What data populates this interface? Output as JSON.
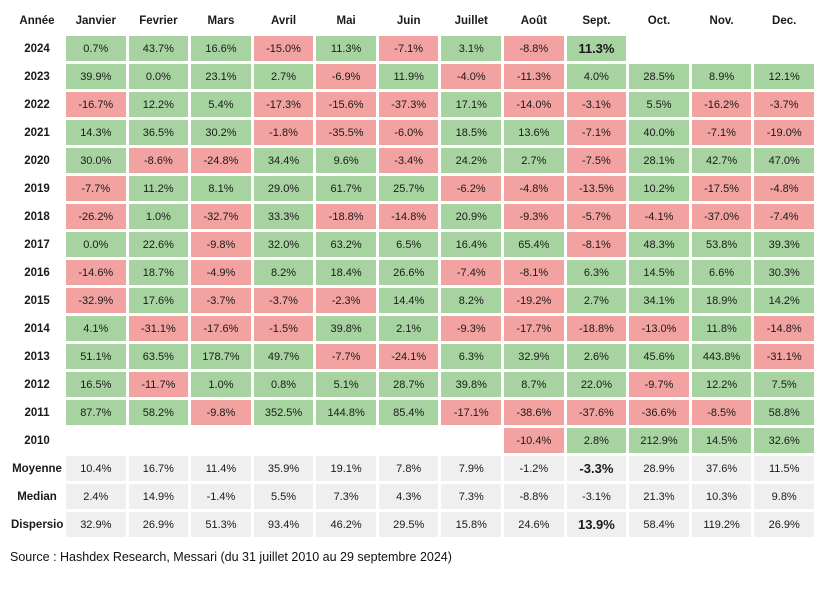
{
  "chart_data": {
    "type": "table",
    "columns": [
      "Année",
      "Janvier",
      "Fevrier",
      "Mars",
      "Avril",
      "Mai",
      "Juin",
      "Juillet",
      "Août",
      "Sept.",
      "Oct.",
      "Nov.",
      "Dec."
    ],
    "rows": [
      {
        "label": "2024",
        "kind": "year",
        "values": [
          "0.7%",
          "43.7%",
          "16.6%",
          "-15.0%",
          "11.3%",
          "-7.1%",
          "3.1%",
          "-8.8%",
          "11.3%",
          "",
          "",
          ""
        ]
      },
      {
        "label": "2023",
        "kind": "year",
        "values": [
          "39.9%",
          "0.0%",
          "23.1%",
          "2.7%",
          "-6.9%",
          "11.9%",
          "-4.0%",
          "-11.3%",
          "4.0%",
          "28.5%",
          "8.9%",
          "12.1%"
        ]
      },
      {
        "label": "2022",
        "kind": "year",
        "values": [
          "-16.7%",
          "12.2%",
          "5.4%",
          "-17.3%",
          "-15.6%",
          "-37.3%",
          "17.1%",
          "-14.0%",
          "-3.1%",
          "5.5%",
          "-16.2%",
          "-3.7%"
        ]
      },
      {
        "label": "2021",
        "kind": "year",
        "values": [
          "14.3%",
          "36.5%",
          "30.2%",
          "-1.8%",
          "-35.5%",
          "-6.0%",
          "18.5%",
          "13.6%",
          "-7.1%",
          "40.0%",
          "-7.1%",
          "-19.0%"
        ]
      },
      {
        "label": "2020",
        "kind": "year",
        "values": [
          "30.0%",
          "-8.6%",
          "-24.8%",
          "34.4%",
          "9.6%",
          "-3.4%",
          "24.2%",
          "2.7%",
          "-7.5%",
          "28.1%",
          "42.7%",
          "47.0%"
        ]
      },
      {
        "label": "2019",
        "kind": "year",
        "values": [
          "-7.7%",
          "11.2%",
          "8.1%",
          "29.0%",
          "61.7%",
          "25.7%",
          "-6.2%",
          "-4.8%",
          "-13.5%",
          "10.2%",
          "-17.5%",
          "-4.8%"
        ]
      },
      {
        "label": "2018",
        "kind": "year",
        "values": [
          "-26.2%",
          "1.0%",
          "-32.7%",
          "33.3%",
          "-18.8%",
          "-14.8%",
          "20.9%",
          "-9.3%",
          "-5.7%",
          "-4.1%",
          "-37.0%",
          "-7.4%"
        ]
      },
      {
        "label": "2017",
        "kind": "year",
        "values": [
          "0.0%",
          "22.6%",
          "-9.8%",
          "32.0%",
          "63.2%",
          "6.5%",
          "16.4%",
          "65.4%",
          "-8.1%",
          "48.3%",
          "53.8%",
          "39.3%"
        ]
      },
      {
        "label": "2016",
        "kind": "year",
        "values": [
          "-14.6%",
          "18.7%",
          "-4.9%",
          "8.2%",
          "18.4%",
          "26.6%",
          "-7.4%",
          "-8.1%",
          "6.3%",
          "14.5%",
          "6.6%",
          "30.3%"
        ]
      },
      {
        "label": "2015",
        "kind": "year",
        "values": [
          "-32.9%",
          "17.6%",
          "-3.7%",
          "-3.7%",
          "-2.3%",
          "14.4%",
          "8.2%",
          "-19.2%",
          "2.7%",
          "34.1%",
          "18.9%",
          "14.2%"
        ]
      },
      {
        "label": "2014",
        "kind": "year",
        "values": [
          "4.1%",
          "-31.1%",
          "-17.6%",
          "-1.5%",
          "39.8%",
          "2.1%",
          "-9.3%",
          "-17.7%",
          "-18.8%",
          "-13.0%",
          "11.8%",
          "-14.8%"
        ]
      },
      {
        "label": "2013",
        "kind": "year",
        "values": [
          "51.1%",
          "63.5%",
          "178.7%",
          "49.7%",
          "-7.7%",
          "-24.1%",
          "6.3%",
          "32.9%",
          "2.6%",
          "45.6%",
          "443.8%",
          "-31.1%"
        ]
      },
      {
        "label": "2012",
        "kind": "year",
        "values": [
          "16.5%",
          "-11.7%",
          "1.0%",
          "0.8%",
          "5.1%",
          "28.7%",
          "39.8%",
          "8.7%",
          "22.0%",
          "-9.7%",
          "12.2%",
          "7.5%"
        ]
      },
      {
        "label": "2011",
        "kind": "year",
        "values": [
          "87.7%",
          "58.2%",
          "-9.8%",
          "352.5%",
          "144.8%",
          "85.4%",
          "-17.1%",
          "-38.6%",
          "-37.6%",
          "-36.6%",
          "-8.5%",
          "58.8%"
        ]
      },
      {
        "label": "2010",
        "kind": "year",
        "values": [
          "",
          "",
          "",
          "",
          "",
          "",
          "",
          "-10.4%",
          "2.8%",
          "212.9%",
          "14.5%",
          "32.6%"
        ]
      },
      {
        "label": "Moyenne",
        "kind": "summary",
        "values": [
          "10.4%",
          "16.7%",
          "11.4%",
          "35.9%",
          "19.1%",
          "7.8%",
          "7.9%",
          "-1.2%",
          "-3.3%",
          "28.9%",
          "37.6%",
          "11.5%"
        ]
      },
      {
        "label": "Median",
        "kind": "summary",
        "values": [
          "2.4%",
          "14.9%",
          "-1.4%",
          "5.5%",
          "7.3%",
          "4.3%",
          "7.3%",
          "-8.8%",
          "-3.1%",
          "21.3%",
          "10.3%",
          "9.8%"
        ]
      },
      {
        "label": "Dispersion",
        "kind": "summary",
        "values": [
          "32.9%",
          "26.9%",
          "51.3%",
          "93.4%",
          "46.2%",
          "29.5%",
          "15.8%",
          "24.6%",
          "13.9%",
          "58.4%",
          "119.2%",
          "26.9%"
        ]
      }
    ],
    "highlighted_cells": [
      {
        "row": "2024",
        "col": "Sept."
      },
      {
        "row": "Moyenne",
        "col": "Sept."
      },
      {
        "row": "Dispersion",
        "col": "Sept."
      }
    ]
  },
  "source": "Source : Hashdex Research, Messari (du 31 juillet 2010 au 29 septembre 2024)",
  "colors": {
    "positive": "#a6d3a0",
    "negative": "#f2a2a0",
    "summary_bg": "#efefef"
  }
}
